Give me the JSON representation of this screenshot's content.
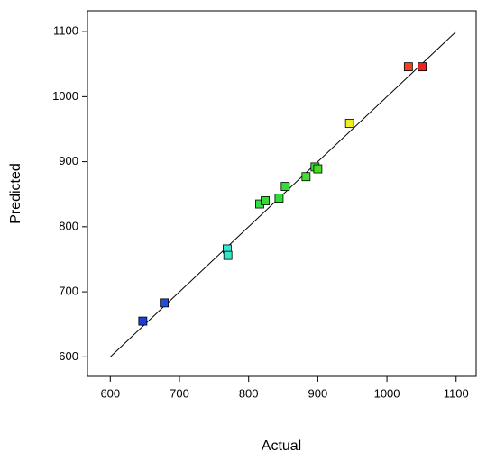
{
  "chart_data": {
    "type": "scatter",
    "x_label": "Actual",
    "y_label": "Predicted",
    "x": [
      647,
      678,
      769,
      770,
      816,
      824,
      844,
      853,
      883,
      896,
      900,
      946,
      1031,
      1051
    ],
    "y": [
      655,
      683,
      766,
      756,
      835,
      840,
      844,
      862,
      877,
      892,
      889,
      959,
      1046,
      1046
    ],
    "colors": [
      "#1f3cdc",
      "#1f4ee0",
      "#33e8d0",
      "#33e8c4",
      "#33dd44",
      "#33dd33",
      "#33dd33",
      "#33dd33",
      "#44dd33",
      "#33dd33",
      "#44dd22",
      "#eeee22",
      "#ee4422",
      "#ee2222"
    ],
    "line": {
      "x": [
        600,
        1100
      ],
      "y": [
        600,
        1100
      ],
      "color": "#000000"
    },
    "xlim": [
      567,
      1129
    ],
    "ylim": [
      570,
      1132
    ],
    "xticks": [
      600,
      700,
      800,
      900,
      1000,
      1100
    ],
    "yticks": [
      600,
      700,
      800,
      900,
      1000,
      1100
    ]
  }
}
